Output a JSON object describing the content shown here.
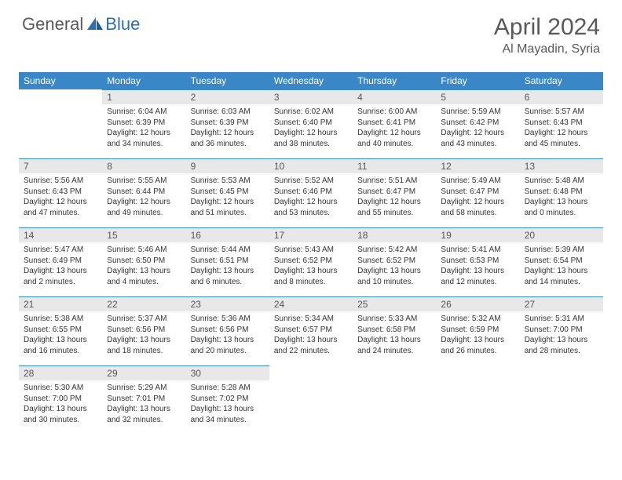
{
  "logo": {
    "general": "General",
    "blue": "Blue"
  },
  "title": "April 2024",
  "location": "Al Mayadin, Syria",
  "colors": {
    "header_bg": "#3a87c8",
    "header_text": "#ffffff",
    "daynum_bg": "#e8e8e8",
    "daynum_border": "#3a87c8",
    "text": "#333333",
    "title_text": "#595959",
    "logo_gray": "#5a5a5a",
    "logo_blue": "#2a6fb5",
    "background": "#ffffff"
  },
  "weekdays": [
    "Sunday",
    "Monday",
    "Tuesday",
    "Wednesday",
    "Thursday",
    "Friday",
    "Saturday"
  ],
  "start_offset": 1,
  "days": [
    {
      "n": 1,
      "sr": "6:04 AM",
      "ss": "6:39 PM",
      "dl": "12 hours and 34 minutes."
    },
    {
      "n": 2,
      "sr": "6:03 AM",
      "ss": "6:39 PM",
      "dl": "12 hours and 36 minutes."
    },
    {
      "n": 3,
      "sr": "6:02 AM",
      "ss": "6:40 PM",
      "dl": "12 hours and 38 minutes."
    },
    {
      "n": 4,
      "sr": "6:00 AM",
      "ss": "6:41 PM",
      "dl": "12 hours and 40 minutes."
    },
    {
      "n": 5,
      "sr": "5:59 AM",
      "ss": "6:42 PM",
      "dl": "12 hours and 43 minutes."
    },
    {
      "n": 6,
      "sr": "5:57 AM",
      "ss": "6:43 PM",
      "dl": "12 hours and 45 minutes."
    },
    {
      "n": 7,
      "sr": "5:56 AM",
      "ss": "6:43 PM",
      "dl": "12 hours and 47 minutes."
    },
    {
      "n": 8,
      "sr": "5:55 AM",
      "ss": "6:44 PM",
      "dl": "12 hours and 49 minutes."
    },
    {
      "n": 9,
      "sr": "5:53 AM",
      "ss": "6:45 PM",
      "dl": "12 hours and 51 minutes."
    },
    {
      "n": 10,
      "sr": "5:52 AM",
      "ss": "6:46 PM",
      "dl": "12 hours and 53 minutes."
    },
    {
      "n": 11,
      "sr": "5:51 AM",
      "ss": "6:47 PM",
      "dl": "12 hours and 55 minutes."
    },
    {
      "n": 12,
      "sr": "5:49 AM",
      "ss": "6:47 PM",
      "dl": "12 hours and 58 minutes."
    },
    {
      "n": 13,
      "sr": "5:48 AM",
      "ss": "6:48 PM",
      "dl": "13 hours and 0 minutes."
    },
    {
      "n": 14,
      "sr": "5:47 AM",
      "ss": "6:49 PM",
      "dl": "13 hours and 2 minutes."
    },
    {
      "n": 15,
      "sr": "5:46 AM",
      "ss": "6:50 PM",
      "dl": "13 hours and 4 minutes."
    },
    {
      "n": 16,
      "sr": "5:44 AM",
      "ss": "6:51 PM",
      "dl": "13 hours and 6 minutes."
    },
    {
      "n": 17,
      "sr": "5:43 AM",
      "ss": "6:52 PM",
      "dl": "13 hours and 8 minutes."
    },
    {
      "n": 18,
      "sr": "5:42 AM",
      "ss": "6:52 PM",
      "dl": "13 hours and 10 minutes."
    },
    {
      "n": 19,
      "sr": "5:41 AM",
      "ss": "6:53 PM",
      "dl": "13 hours and 12 minutes."
    },
    {
      "n": 20,
      "sr": "5:39 AM",
      "ss": "6:54 PM",
      "dl": "13 hours and 14 minutes."
    },
    {
      "n": 21,
      "sr": "5:38 AM",
      "ss": "6:55 PM",
      "dl": "13 hours and 16 minutes."
    },
    {
      "n": 22,
      "sr": "5:37 AM",
      "ss": "6:56 PM",
      "dl": "13 hours and 18 minutes."
    },
    {
      "n": 23,
      "sr": "5:36 AM",
      "ss": "6:56 PM",
      "dl": "13 hours and 20 minutes."
    },
    {
      "n": 24,
      "sr": "5:34 AM",
      "ss": "6:57 PM",
      "dl": "13 hours and 22 minutes."
    },
    {
      "n": 25,
      "sr": "5:33 AM",
      "ss": "6:58 PM",
      "dl": "13 hours and 24 minutes."
    },
    {
      "n": 26,
      "sr": "5:32 AM",
      "ss": "6:59 PM",
      "dl": "13 hours and 26 minutes."
    },
    {
      "n": 27,
      "sr": "5:31 AM",
      "ss": "7:00 PM",
      "dl": "13 hours and 28 minutes."
    },
    {
      "n": 28,
      "sr": "5:30 AM",
      "ss": "7:00 PM",
      "dl": "13 hours and 30 minutes."
    },
    {
      "n": 29,
      "sr": "5:29 AM",
      "ss": "7:01 PM",
      "dl": "13 hours and 32 minutes."
    },
    {
      "n": 30,
      "sr": "5:28 AM",
      "ss": "7:02 PM",
      "dl": "13 hours and 34 minutes."
    }
  ],
  "labels": {
    "sunrise": "Sunrise:",
    "sunset": "Sunset:",
    "daylight": "Daylight:"
  }
}
